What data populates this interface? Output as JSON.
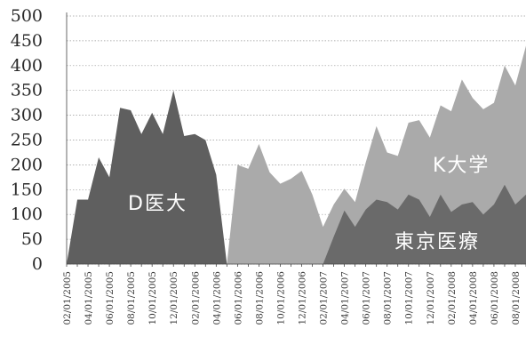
{
  "chart_data": {
    "type": "area",
    "title": "",
    "xlabel": "",
    "ylabel": "",
    "ylim": [
      0,
      500
    ],
    "yticks": [
      0,
      50,
      100,
      150,
      200,
      250,
      300,
      350,
      400,
      450,
      500
    ],
    "grid": true,
    "x": [
      "02/01/2005",
      "03/01/2005",
      "04/01/2005",
      "05/01/2005",
      "06/01/2005",
      "07/01/2005",
      "08/01/2005",
      "09/01/2005",
      "10/01/2005",
      "11/01/2005",
      "12/01/2005",
      "01/01/2006",
      "02/01/2006",
      "03/01/2006",
      "04/01/2006",
      "05/01/2006",
      "06/01/2006",
      "07/01/2006",
      "08/01/2006",
      "09/01/2006",
      "10/01/2006",
      "11/01/2006",
      "12/01/2006",
      "01/01/2007",
      "02/01/2007",
      "03/01/2007",
      "04/01/2007",
      "05/01/2007",
      "06/01/2007",
      "07/01/2007",
      "08/01/2007",
      "09/01/2007",
      "10/01/2007",
      "11/01/2007",
      "12/01/2007",
      "01/01/2008",
      "02/01/2008",
      "03/01/2008",
      "04/01/2008",
      "05/01/2008",
      "06/01/2008",
      "07/01/2008",
      "08/01/2008",
      "09/01/2008"
    ],
    "x_tick_labels": [
      "02/01/2005",
      "04/01/2005",
      "06/01/2005",
      "08/01/2005",
      "10/01/2005",
      "12/01/2005",
      "02/01/2006",
      "04/01/2006",
      "06/01/2006",
      "08/01/2006",
      "10/01/2006",
      "12/01/2006",
      "02/01/2007",
      "04/01/2007",
      "06/01/2007",
      "08/01/2007",
      "10/01/2007",
      "12/01/2007",
      "02/01/2008",
      "04/01/2008",
      "06/01/2008",
      "08/01/2008"
    ],
    "series": [
      {
        "name": "D医大",
        "color": "#5f5f5f",
        "values": [
          0,
          130,
          130,
          215,
          175,
          315,
          310,
          262,
          305,
          262,
          350,
          258,
          262,
          250,
          180,
          0,
          null,
          null,
          null,
          null,
          null,
          null,
          null,
          null,
          null,
          null,
          null,
          null,
          null,
          null,
          null,
          null,
          null,
          null,
          null,
          null,
          null,
          null,
          null,
          null,
          null,
          null,
          null,
          null
        ]
      },
      {
        "name": "K大学",
        "color": "#aaaaaa",
        "values": [
          null,
          null,
          null,
          null,
          null,
          null,
          null,
          null,
          null,
          null,
          null,
          null,
          null,
          null,
          null,
          0,
          200,
          192,
          242,
          185,
          162,
          172,
          188,
          140,
          75,
          120,
          152,
          125,
          205,
          278,
          225,
          218,
          285,
          290,
          255,
          320,
          308,
          372,
          335,
          312,
          325,
          400,
          360,
          440
        ]
      },
      {
        "name": "東京医療",
        "color": "#6a6a6a",
        "values": [
          null,
          null,
          null,
          null,
          null,
          null,
          null,
          null,
          null,
          null,
          null,
          null,
          null,
          null,
          null,
          null,
          null,
          null,
          null,
          null,
          null,
          null,
          null,
          null,
          0,
          55,
          108,
          75,
          110,
          130,
          125,
          110,
          140,
          130,
          95,
          140,
          105,
          120,
          125,
          100,
          120,
          160,
          120,
          140
        ]
      }
    ],
    "annotations": [
      "D医大",
      "K大学",
      "東京医療"
    ]
  }
}
